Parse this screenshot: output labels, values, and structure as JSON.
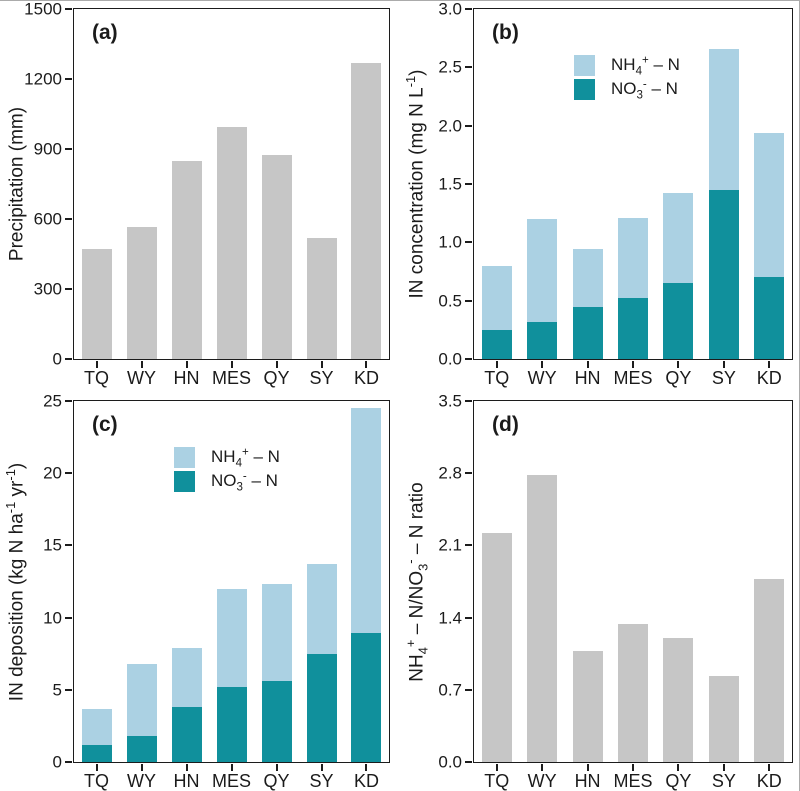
{
  "figure": {
    "categories": [
      "TQ",
      "WY",
      "HN",
      "MES",
      "QY",
      "SY",
      "KD"
    ],
    "colors": {
      "bar_gray": "#c6c6c6",
      "nh4_blue": "#abd1e3",
      "no3_teal": "#10909c",
      "axis": "#1c1c1c"
    }
  },
  "chart_data": [
    {
      "id": "a",
      "type": "bar",
      "panel_label": "(a)",
      "ylabel": "Precipitation (mm)",
      "ylabel_parts": [
        {
          "t": "Precipitation (mm)"
        }
      ],
      "ylim": [
        0,
        1500
      ],
      "yticks": [
        "0",
        "300",
        "600",
        "900",
        "1200",
        "1500"
      ],
      "grid": false,
      "categories": [
        "TQ",
        "WY",
        "HN",
        "MES",
        "QY",
        "SY",
        "KD"
      ],
      "values": [
        470,
        565,
        850,
        995,
        875,
        520,
        1270
      ],
      "bar_color_key": "bar_gray"
    },
    {
      "id": "b",
      "type": "stacked_bar",
      "panel_label": "(b)",
      "ylabel": "IN concentration (mg N L⁻¹)",
      "ylabel_parts": [
        {
          "t": "IN concentration (mg N L"
        },
        {
          "t": "-1",
          "sup": true
        },
        {
          "t": ")"
        }
      ],
      "ylim": [
        0,
        3.0
      ],
      "yticks": [
        "0.0",
        "0.5",
        "1.0",
        "1.5",
        "2.0",
        "2.5",
        "3.0"
      ],
      "grid": false,
      "categories": [
        "TQ",
        "WY",
        "HN",
        "MES",
        "QY",
        "SY",
        "KD"
      ],
      "series": [
        {
          "name": "NO₃⁻–N",
          "color_key": "no3_teal",
          "values": [
            0.25,
            0.32,
            0.45,
            0.52,
            0.65,
            1.45,
            0.7
          ]
        },
        {
          "name": "NH₄⁺–N",
          "color_key": "nh4_blue",
          "values": [
            0.55,
            0.88,
            0.49,
            0.69,
            0.77,
            1.21,
            1.24
          ]
        }
      ],
      "totals": [
        0.8,
        1.2,
        0.94,
        1.21,
        1.42,
        2.66,
        1.94
      ],
      "legend": {
        "position": "upper-left-inside",
        "items": [
          {
            "label": "NH₄⁺ – N",
            "color_key": "nh4_blue",
            "parts": [
              {
                "t": "NH"
              },
              {
                "t": "4",
                "sub": true
              },
              {
                "t": "+",
                "sup": true
              },
              {
                "t": " – N"
              }
            ]
          },
          {
            "label": "NO₃⁻ – N",
            "color_key": "no3_teal",
            "parts": [
              {
                "t": "NO"
              },
              {
                "t": "3",
                "sub": true
              },
              {
                "t": "-",
                "sup": true
              },
              {
                "t": " – N"
              }
            ]
          }
        ]
      }
    },
    {
      "id": "c",
      "type": "stacked_bar",
      "panel_label": "(c)",
      "ylabel": "IN deposition (kg N ha⁻¹ yr⁻¹)",
      "ylabel_parts": [
        {
          "t": "IN deposition (kg N ha"
        },
        {
          "t": "-1",
          "sup": true
        },
        {
          "t": " yr"
        },
        {
          "t": "-1",
          "sup": true
        },
        {
          "t": ")"
        }
      ],
      "ylim": [
        0,
        25
      ],
      "yticks": [
        "0",
        "5",
        "10",
        "15",
        "20",
        "25"
      ],
      "grid": false,
      "categories": [
        "TQ",
        "WY",
        "HN",
        "MES",
        "QY",
        "SY",
        "KD"
      ],
      "series": [
        {
          "name": "NO₃⁻–N",
          "color_key": "no3_teal",
          "values": [
            1.2,
            1.8,
            3.8,
            5.2,
            5.6,
            7.5,
            8.9
          ]
        },
        {
          "name": "NH₄⁺–N",
          "color_key": "nh4_blue",
          "values": [
            2.5,
            5.0,
            4.1,
            6.8,
            6.7,
            6.2,
            15.6
          ]
        }
      ],
      "totals": [
        3.7,
        6.8,
        7.9,
        12.0,
        12.3,
        13.7,
        24.5
      ],
      "legend": {
        "position": "upper-left-inside",
        "items": [
          {
            "label": "NH₄⁺ – N",
            "color_key": "nh4_blue",
            "parts": [
              {
                "t": "NH"
              },
              {
                "t": "4",
                "sub": true
              },
              {
                "t": "+",
                "sup": true
              },
              {
                "t": " – N"
              }
            ]
          },
          {
            "label": "NO₃⁻ – N",
            "color_key": "no3_teal",
            "parts": [
              {
                "t": "NO"
              },
              {
                "t": "3",
                "sub": true
              },
              {
                "t": "-",
                "sup": true
              },
              {
                "t": " – N"
              }
            ]
          }
        ]
      }
    },
    {
      "id": "d",
      "type": "bar",
      "panel_label": "(d)",
      "ylabel": "NH₄⁺ – N/NO₃⁻ – N ratio",
      "ylabel_parts": [
        {
          "t": "NH"
        },
        {
          "t": "4",
          "sub": true
        },
        {
          "t": "+",
          "sup": true
        },
        {
          "t": " – N/NO"
        },
        {
          "t": "3",
          "sub": true
        },
        {
          "t": "-",
          "sup": true
        },
        {
          "t": " – N ratio"
        }
      ],
      "ylim": [
        0,
        3.5
      ],
      "yticks": [
        "0.0",
        "0.7",
        "1.4",
        "2.1",
        "2.8",
        "3.5"
      ],
      "grid": false,
      "categories": [
        "TQ",
        "WY",
        "HN",
        "MES",
        "QY",
        "SY",
        "KD"
      ],
      "values": [
        2.22,
        2.78,
        1.08,
        1.34,
        1.2,
        0.83,
        1.77
      ],
      "bar_color_key": "bar_gray"
    }
  ]
}
